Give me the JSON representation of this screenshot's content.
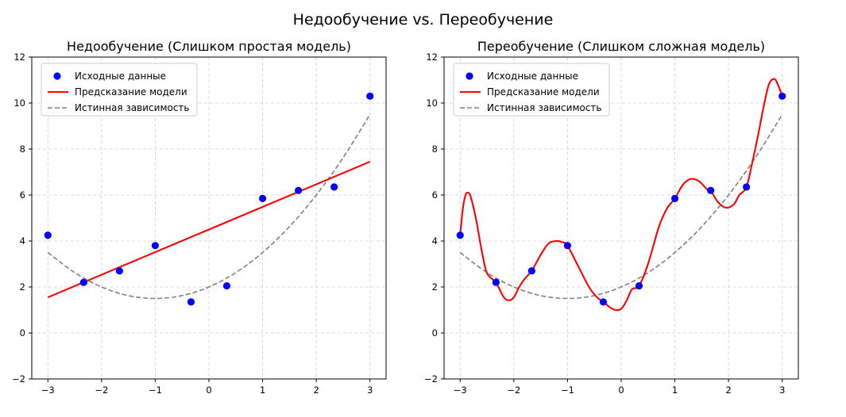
{
  "suptitle": "Недообучение vs. Переобучение",
  "chart_data": [
    {
      "type": "scatter",
      "title": "Недообучение (Слишком простая модель)",
      "xlabel": "",
      "ylabel": "",
      "xlim": [
        -3.3,
        3.3
      ],
      "ylim": [
        -2,
        12
      ],
      "xticks": [
        -3,
        -2,
        -1,
        0,
        1,
        2,
        3
      ],
      "yticks": [
        -2,
        0,
        2,
        4,
        6,
        8,
        10,
        12
      ],
      "grid": true,
      "legend_position": "top-left",
      "series": [
        {
          "name": "Исходные данные",
          "kind": "points",
          "color": "#0000ff",
          "x": [
            -3,
            -2.333,
            -1.667,
            -1,
            -0.333,
            0.333,
            1,
            1.667,
            2.333,
            3
          ],
          "y": [
            4.25,
            2.2,
            2.7,
            3.8,
            1.35,
            2.05,
            5.85,
            6.2,
            6.35,
            10.3
          ]
        },
        {
          "name": "Предсказание модели",
          "kind": "line",
          "color": "#ff0000",
          "x": [
            -3,
            3
          ],
          "y": [
            1.55,
            7.45
          ]
        },
        {
          "name": "Истинная зависимость",
          "kind": "dashed",
          "color": "#808080",
          "x": [
            -3,
            -2.5,
            -2,
            -1.5,
            -1,
            -0.5,
            0,
            0.5,
            1,
            1.5,
            2,
            2.5,
            3
          ],
          "y": [
            3.5,
            2.625,
            2.0,
            1.625,
            1.5,
            1.625,
            2.0,
            2.625,
            3.5,
            4.625,
            6.0,
            7.625,
            9.5
          ]
        }
      ]
    },
    {
      "type": "scatter",
      "title": "Переобучение (Слишком сложная модель)",
      "xlabel": "",
      "ylabel": "",
      "xlim": [
        -3.3,
        3.3
      ],
      "ylim": [
        -2,
        12
      ],
      "xticks": [
        -3,
        -2,
        -1,
        0,
        1,
        2,
        3
      ],
      "yticks": [
        -2,
        0,
        2,
        4,
        6,
        8,
        10,
        12
      ],
      "grid": true,
      "legend_position": "top-left",
      "series": [
        {
          "name": "Исходные данные",
          "kind": "points",
          "color": "#0000ff",
          "x": [
            -3,
            -2.333,
            -1.667,
            -1,
            -0.333,
            0.333,
            1,
            1.667,
            2.333,
            3
          ],
          "y": [
            4.25,
            2.2,
            2.7,
            3.8,
            1.35,
            2.05,
            5.85,
            6.2,
            6.35,
            10.3
          ]
        },
        {
          "name": "Предсказание модели",
          "kind": "line",
          "color": "#ff0000",
          "x": [
            -3,
            -2.95,
            -2.9,
            -2.85,
            -2.8,
            -2.7,
            -2.6,
            -2.5,
            -2.333,
            -2.2,
            -2.1,
            -2.0,
            -1.9,
            -1.8,
            -1.667,
            -1.5,
            -1.35,
            -1.2,
            -1.1,
            -1,
            -0.8,
            -0.6,
            -0.45,
            -0.333,
            -0.2,
            -0.1,
            0,
            0.1,
            0.2,
            0.333,
            0.5,
            0.7,
            0.85,
            1,
            1.15,
            1.3,
            1.45,
            1.6,
            1.667,
            1.8,
            1.95,
            2.1,
            2.2,
            2.333,
            2.45,
            2.55,
            2.65,
            2.75,
            2.85,
            2.92,
            3
          ],
          "y": [
            4.25,
            5.4,
            6.0,
            6.1,
            5.9,
            4.9,
            3.6,
            2.6,
            2.2,
            1.6,
            1.42,
            1.55,
            2.0,
            2.35,
            2.7,
            3.4,
            3.9,
            4.0,
            3.95,
            3.8,
            2.9,
            2.0,
            1.55,
            1.35,
            1.1,
            1.0,
            1.05,
            1.4,
            1.9,
            2.05,
            3.0,
            4.6,
            5.4,
            5.85,
            6.45,
            6.7,
            6.6,
            6.25,
            6.2,
            5.7,
            5.45,
            5.6,
            6.0,
            6.35,
            7.5,
            8.6,
            9.8,
            10.8,
            11.05,
            10.8,
            10.3
          ]
        },
        {
          "name": "Истинная зависимость",
          "kind": "dashed",
          "color": "#808080",
          "x": [
            -3,
            -2.5,
            -2,
            -1.5,
            -1,
            -0.5,
            0,
            0.5,
            1,
            1.5,
            2,
            2.5,
            3
          ],
          "y": [
            3.5,
            2.625,
            2.0,
            1.625,
            1.5,
            1.625,
            2.0,
            2.625,
            3.5,
            4.625,
            6.0,
            7.625,
            9.5
          ]
        }
      ]
    }
  ]
}
